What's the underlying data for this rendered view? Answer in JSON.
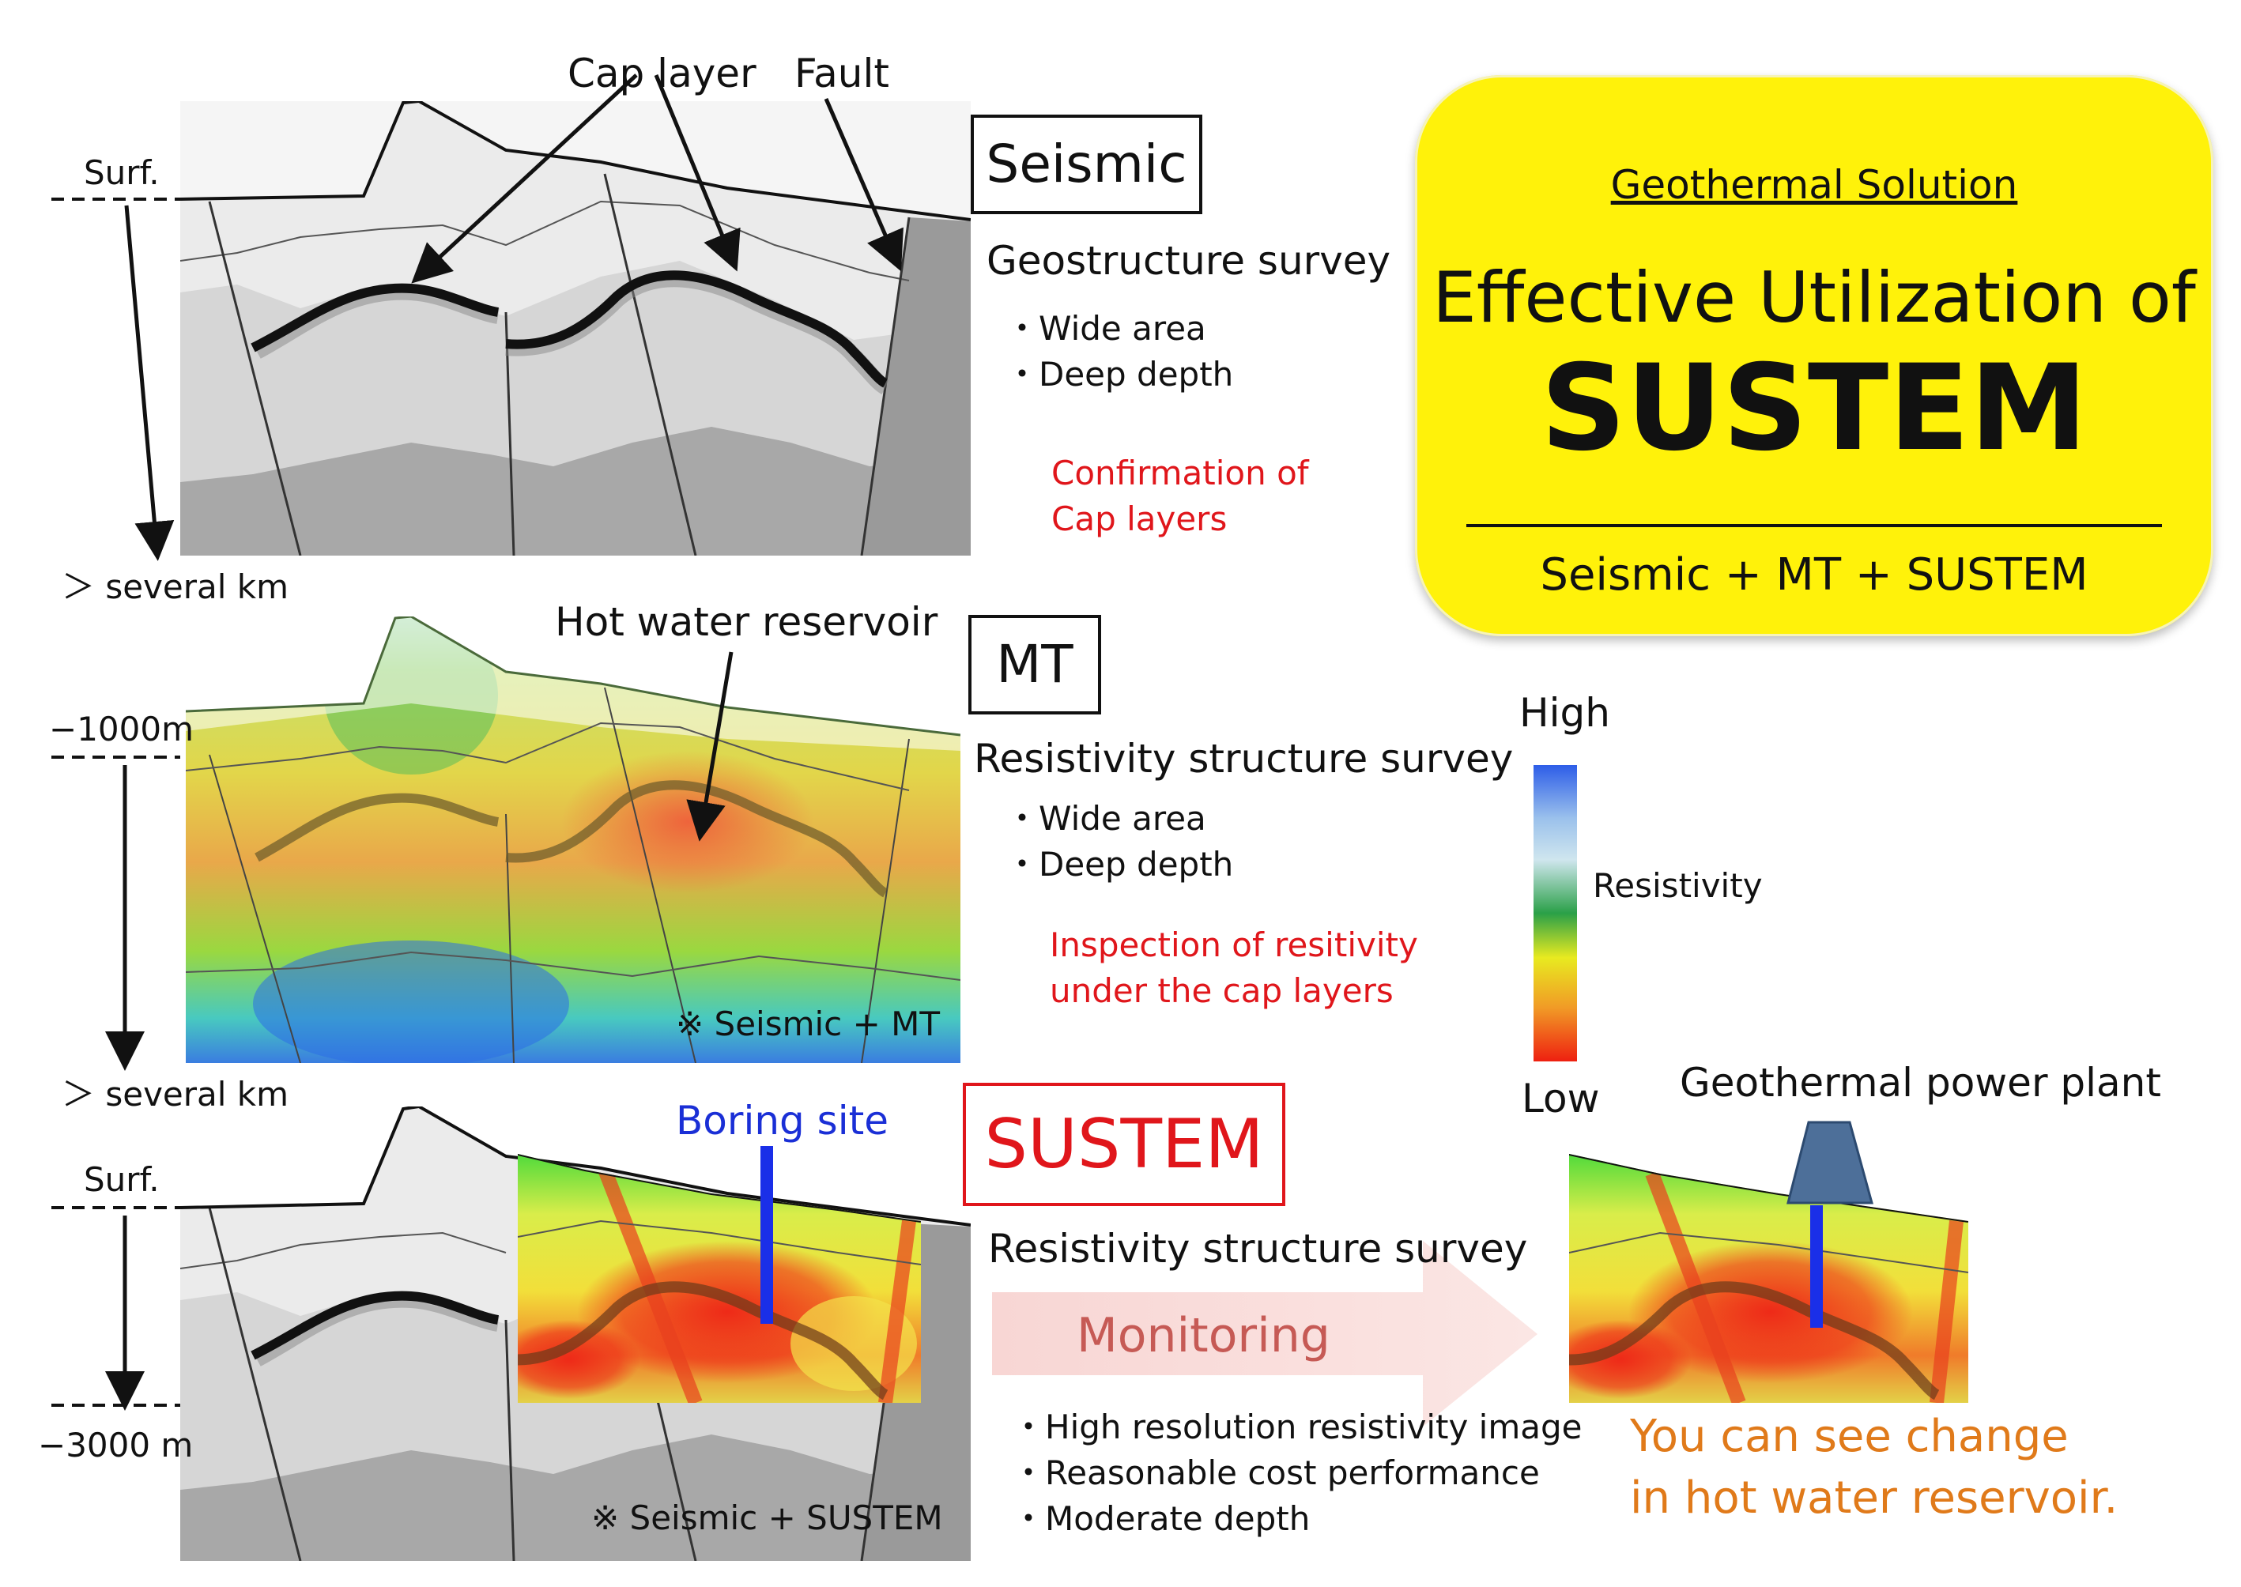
{
  "title_card": {
    "subtitle": "Geothermal Solution",
    "line1": "Effective Utilization of",
    "line2": "SUSTEM",
    "footer": "Seismic + MT + SUSTEM"
  },
  "panel_seismic": {
    "label": "Seismic",
    "survey": "Geostructure survey",
    "bullets": [
      "・Wide area",
      "・Deep depth"
    ],
    "note_line1": "Confirmation of",
    "note_line2": "Cap layers",
    "callout_cap": "Cap layer",
    "callout_fault": "Fault",
    "depth_top": "Surf.",
    "depth_bottom": "＞ several km"
  },
  "panel_mt": {
    "label": "MT",
    "survey": "Resistivity structure survey",
    "bullets": [
      "・Wide area",
      "・Deep depth"
    ],
    "note_line1": "Inspection of resitivity",
    "note_line2": "under the cap layers",
    "callout": "Hot water reservoir",
    "caption": "※ Seismic + MT",
    "depth_top": "−1000m",
    "depth_bottom": "＞ several km"
  },
  "panel_sustem": {
    "label": "SUSTEM",
    "survey": "Resistivity structure survey",
    "arrow_text": "Monitoring",
    "bullets": [
      "・High resolution resistivity image",
      "・Reasonable cost performance",
      "・Moderate depth"
    ],
    "callout_boring": "Boring site",
    "caption": "※ Seismic + SUSTEM",
    "depth_top": "Surf.",
    "depth_bottom": "−3000 m"
  },
  "legend": {
    "high": "High",
    "low": "Low",
    "label": "Resistivity"
  },
  "power_plant": {
    "label": "Geothermal power plant",
    "result_line1": "You can see change",
    "result_line2": "in hot water reservoir."
  }
}
